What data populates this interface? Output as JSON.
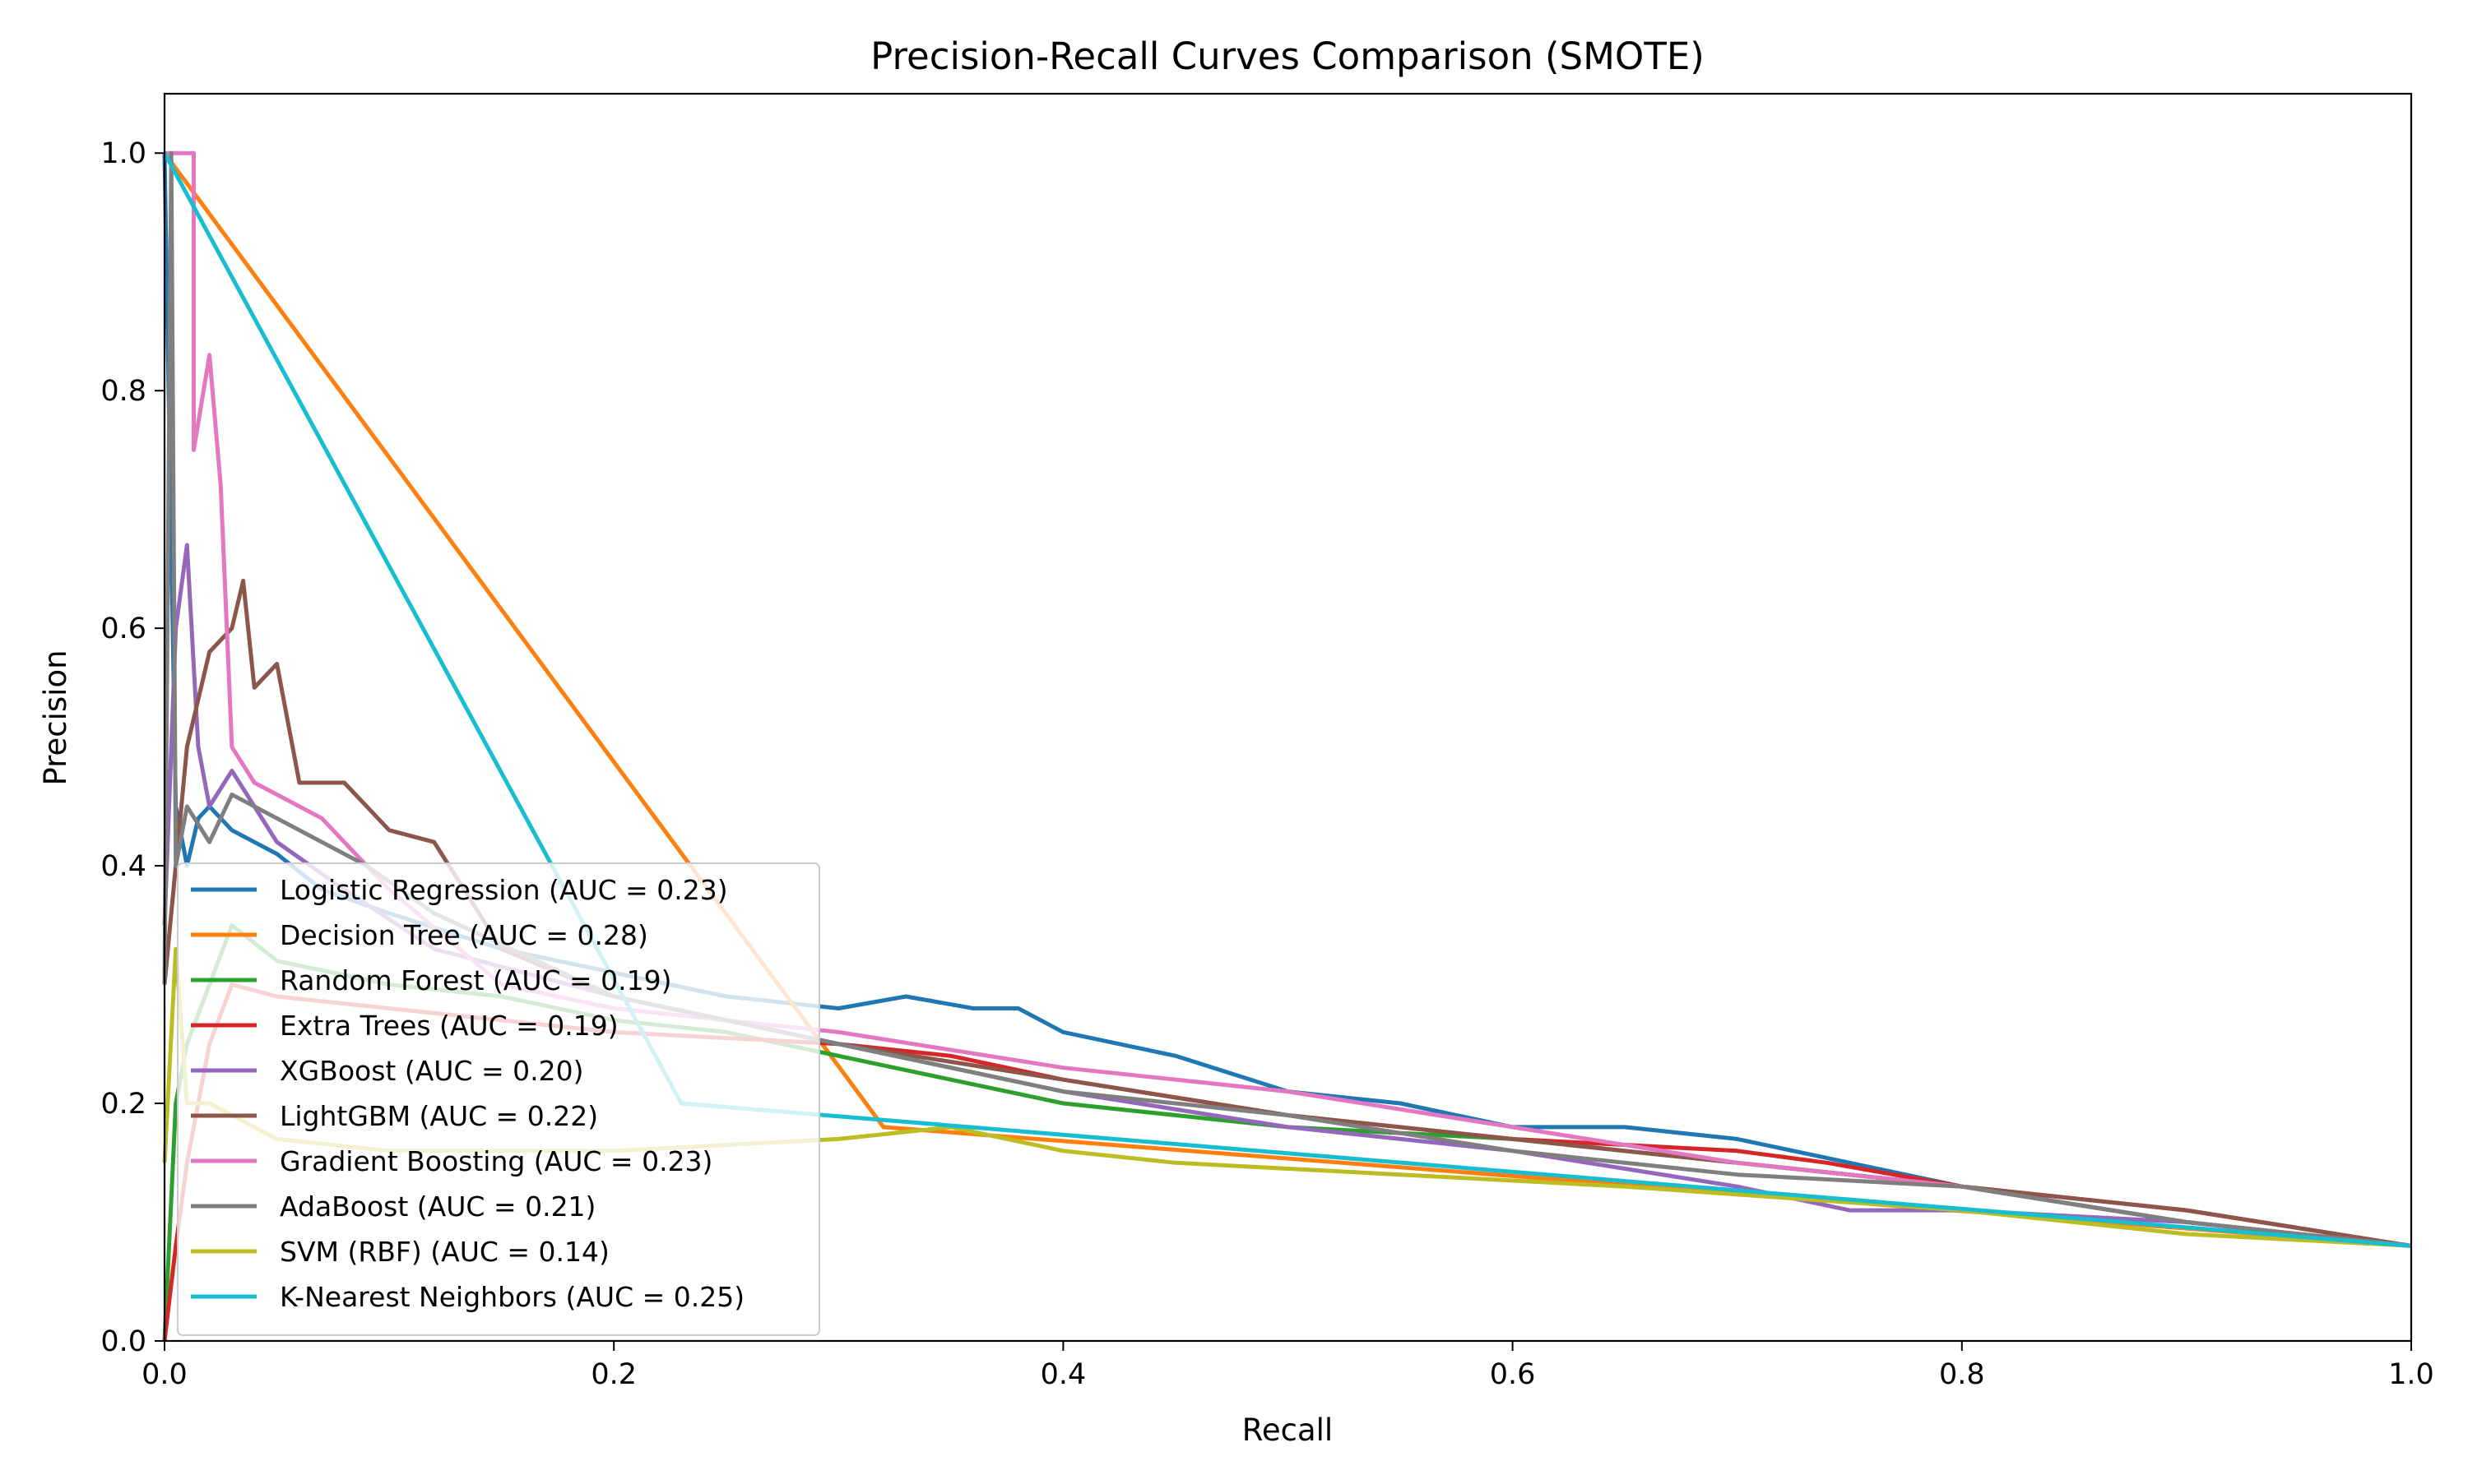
{
  "chart_data": {
    "type": "line",
    "title": "Precision-Recall Curves Comparison (SMOTE)",
    "xlabel": "Recall",
    "ylabel": "Precision",
    "xlim": [
      0.0,
      1.0
    ],
    "ylim": [
      0.0,
      1.05
    ],
    "xticks": [
      "0.0",
      "0.2",
      "0.4",
      "0.6",
      "0.8",
      "1.0"
    ],
    "yticks": [
      "0.0",
      "0.2",
      "0.4",
      "0.6",
      "0.8",
      "1.0"
    ],
    "grid": false,
    "legend_position": "lower-left",
    "series": [
      {
        "name": "Logistic Regression (AUC = 0.23)",
        "color": "#1f77b4",
        "x": [
          0.0,
          0.005,
          0.01,
          0.015,
          0.02,
          0.03,
          0.04,
          0.05,
          0.07,
          0.1,
          0.15,
          0.2,
          0.25,
          0.3,
          0.33,
          0.36,
          0.38,
          0.4,
          0.45,
          0.5,
          0.55,
          0.6,
          0.65,
          0.7,
          0.8,
          0.9,
          1.0
        ],
        "y": [
          1.0,
          0.45,
          0.4,
          0.44,
          0.45,
          0.43,
          0.42,
          0.41,
          0.38,
          0.36,
          0.33,
          0.31,
          0.29,
          0.28,
          0.29,
          0.28,
          0.28,
          0.26,
          0.24,
          0.21,
          0.2,
          0.18,
          0.18,
          0.17,
          0.13,
          0.1,
          0.08
        ]
      },
      {
        "name": "Decision Tree (AUC = 0.28)",
        "color": "#ff7f0e",
        "x": [
          0.0,
          0.32,
          1.0
        ],
        "y": [
          1.0,
          0.18,
          0.08
        ]
      },
      {
        "name": "Random Forest (AUC = 0.19)",
        "color": "#2ca02c",
        "x": [
          0.0,
          0.005,
          0.01,
          0.02,
          0.03,
          0.05,
          0.1,
          0.15,
          0.2,
          0.25,
          0.3,
          0.35,
          0.4,
          0.5,
          0.6,
          0.7,
          0.8,
          0.9,
          1.0
        ],
        "y": [
          0.0,
          0.2,
          0.25,
          0.3,
          0.35,
          0.32,
          0.3,
          0.29,
          0.27,
          0.26,
          0.24,
          0.22,
          0.2,
          0.18,
          0.17,
          0.15,
          0.13,
          0.1,
          0.08
        ]
      },
      {
        "name": "Extra Trees (AUC = 0.19)",
        "color": "#d62728",
        "x": [
          0.0,
          0.005,
          0.01,
          0.02,
          0.03,
          0.05,
          0.1,
          0.15,
          0.2,
          0.3,
          0.35,
          0.4,
          0.5,
          0.6,
          0.7,
          0.74,
          0.8,
          0.9,
          1.0
        ],
        "y": [
          0.0,
          0.08,
          0.15,
          0.25,
          0.3,
          0.29,
          0.28,
          0.27,
          0.26,
          0.25,
          0.24,
          0.22,
          0.19,
          0.17,
          0.16,
          0.15,
          0.13,
          0.11,
          0.08
        ]
      },
      {
        "name": "XGBoost (AUC = 0.20)",
        "color": "#9467bd",
        "x": [
          0.0,
          0.005,
          0.01,
          0.015,
          0.02,
          0.03,
          0.05,
          0.08,
          0.12,
          0.2,
          0.3,
          0.4,
          0.5,
          0.6,
          0.7,
          0.75,
          0.8,
          0.9,
          1.0
        ],
        "y": [
          0.35,
          0.6,
          0.67,
          0.5,
          0.45,
          0.48,
          0.42,
          0.38,
          0.33,
          0.29,
          0.25,
          0.21,
          0.18,
          0.16,
          0.13,
          0.11,
          0.11,
          0.1,
          0.08
        ]
      },
      {
        "name": "LightGBM (AUC = 0.22)",
        "color": "#8c564b",
        "x": [
          0.0,
          0.01,
          0.02,
          0.03,
          0.035,
          0.04,
          0.05,
          0.06,
          0.08,
          0.1,
          0.12,
          0.15,
          0.2,
          0.3,
          0.4,
          0.5,
          0.6,
          0.7,
          0.8,
          0.9,
          1.0
        ],
        "y": [
          0.3,
          0.5,
          0.58,
          0.6,
          0.64,
          0.55,
          0.57,
          0.47,
          0.47,
          0.43,
          0.42,
          0.33,
          0.29,
          0.25,
          0.22,
          0.19,
          0.17,
          0.15,
          0.13,
          0.11,
          0.08
        ]
      },
      {
        "name": "Gradient Boosting (AUC = 0.23)",
        "color": "#e377c2",
        "x": [
          0.0,
          0.005,
          0.013,
          0.013,
          0.02,
          0.025,
          0.03,
          0.04,
          0.05,
          0.07,
          0.1,
          0.15,
          0.2,
          0.3,
          0.4,
          0.5,
          0.6,
          0.7,
          0.8,
          0.9,
          1.0
        ],
        "y": [
          1.0,
          1.0,
          1.0,
          0.75,
          0.83,
          0.72,
          0.5,
          0.47,
          0.46,
          0.44,
          0.38,
          0.3,
          0.28,
          0.26,
          0.23,
          0.21,
          0.18,
          0.15,
          0.13,
          0.1,
          0.08
        ]
      },
      {
        "name": "AdaBoost (AUC = 0.21)",
        "color": "#7f7f7f",
        "x": [
          0.0,
          0.003,
          0.005,
          0.01,
          0.02,
          0.03,
          0.05,
          0.07,
          0.09,
          0.12,
          0.2,
          0.3,
          0.4,
          0.5,
          0.6,
          0.7,
          0.8,
          0.9,
          1.0
        ],
        "y": [
          0.3,
          1.0,
          0.4,
          0.45,
          0.42,
          0.46,
          0.44,
          0.42,
          0.4,
          0.36,
          0.29,
          0.25,
          0.21,
          0.19,
          0.16,
          0.14,
          0.13,
          0.1,
          0.08
        ]
      },
      {
        "name": "SVM (RBF) (AUC = 0.14)",
        "color": "#bcbd22",
        "x": [
          0.0,
          0.005,
          0.01,
          0.02,
          0.05,
          0.1,
          0.2,
          0.3,
          0.35,
          0.4,
          0.45,
          0.55,
          0.65,
          0.8,
          0.9,
          1.0
        ],
        "y": [
          0.15,
          0.33,
          0.2,
          0.2,
          0.17,
          0.16,
          0.16,
          0.17,
          0.18,
          0.16,
          0.15,
          0.14,
          0.13,
          0.11,
          0.09,
          0.08
        ]
      },
      {
        "name": "K-Nearest Neighbors (AUC = 0.25)",
        "color": "#17becf",
        "x": [
          0.0,
          0.23,
          1.0
        ],
        "y": [
          1.0,
          0.2,
          0.08
        ]
      }
    ]
  }
}
